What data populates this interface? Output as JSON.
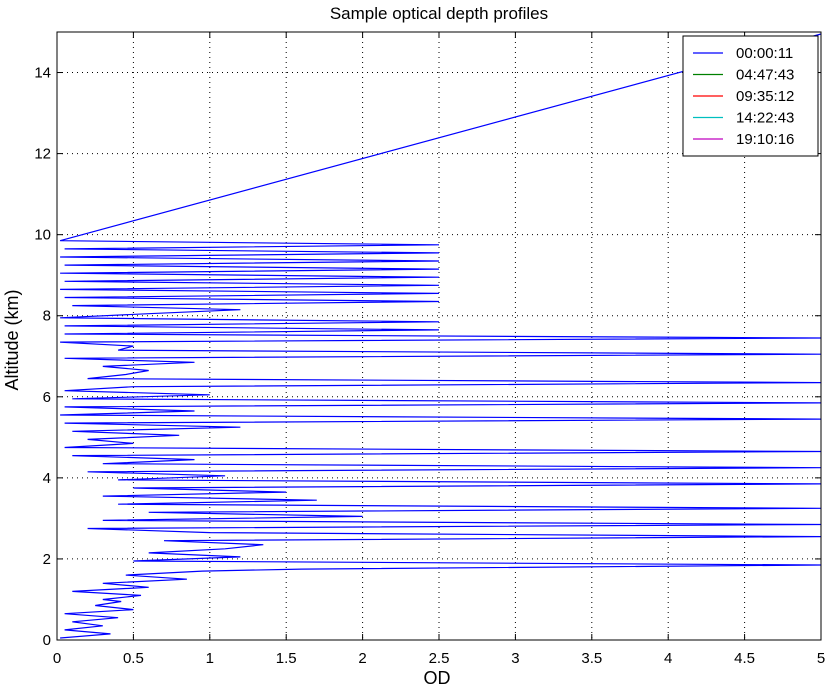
{
  "chart_data": {
    "type": "line",
    "title": "Sample optical depth profiles",
    "xlabel": "OD",
    "ylabel": "Altitude (km)",
    "xlim": [
      0,
      5
    ],
    "ylim": [
      0,
      15
    ],
    "xticks": [
      0,
      0.5,
      1,
      1.5,
      2,
      2.5,
      3,
      3.5,
      4,
      4.5,
      5
    ],
    "xtick_labels": [
      "0",
      "0.5",
      "1",
      "1.5",
      "2",
      "2.5",
      "3",
      "3.5",
      "4",
      "4.5",
      "5"
    ],
    "yticks": [
      0,
      2,
      4,
      6,
      8,
      10,
      12,
      14
    ],
    "ytick_labels": [
      "0",
      "2",
      "4",
      "6",
      "8",
      "10",
      "12",
      "14"
    ],
    "grid": true,
    "legend_position": "top-right",
    "series": [
      {
        "name": "00:00:11",
        "color": "#0000ff",
        "x": [
          0.02,
          0.35,
          0.05,
          0.3,
          0.1,
          0.4,
          0.05,
          0.5,
          0.25,
          0.42,
          0.3,
          0.55,
          0.1,
          0.6,
          0.3,
          0.85,
          0.45,
          0.95,
          1.6,
          5,
          0.5,
          1.2,
          0.6,
          1.1,
          1.35,
          0.7,
          5,
          1.0,
          0.2,
          5,
          0.3,
          2.0,
          0.6,
          5,
          0.4,
          1.7,
          0.3,
          1.5,
          0.5,
          5,
          0.4,
          1.1,
          0.2,
          5,
          0.3,
          0.9,
          0.1,
          5,
          0.05,
          0.5,
          0.2,
          0.8,
          0.1,
          1.2,
          0.05,
          5,
          0.02,
          0.9,
          0.05,
          5,
          0.1,
          1.0,
          0.05,
          0.5,
          5,
          0.2,
          0.45,
          0.6,
          0.3,
          0.9,
          0.05,
          5,
          0.4,
          0.5,
          0.02,
          5,
          0.05,
          2.5,
          0.05,
          2.5,
          0.02,
          0.6,
          1.2,
          0.1,
          2.5,
          0.05,
          2.5,
          0.02,
          2.5,
          0.05,
          2.5,
          0.02,
          2.5,
          0.05,
          2.5,
          0.02,
          2.5,
          0.05,
          2.5,
          0.02,
          5
        ],
        "y": [
          0.05,
          0.15,
          0.25,
          0.35,
          0.45,
          0.55,
          0.65,
          0.75,
          0.85,
          0.95,
          1.0,
          1.1,
          1.2,
          1.3,
          1.4,
          1.5,
          1.6,
          1.7,
          1.75,
          1.85,
          1.95,
          2.05,
          2.15,
          2.25,
          2.35,
          2.45,
          2.55,
          2.65,
          2.75,
          2.85,
          2.95,
          3.05,
          3.15,
          3.25,
          3.35,
          3.45,
          3.55,
          3.65,
          3.75,
          3.85,
          3.95,
          4.05,
          4.15,
          4.25,
          4.35,
          4.45,
          4.55,
          4.65,
          4.75,
          4.85,
          4.95,
          5.05,
          5.15,
          5.25,
          5.35,
          5.45,
          5.55,
          5.65,
          5.75,
          5.85,
          5.95,
          6.05,
          6.15,
          6.25,
          6.35,
          6.45,
          6.55,
          6.65,
          6.75,
          6.85,
          6.95,
          7.05,
          7.15,
          7.25,
          7.35,
          7.45,
          7.55,
          7.65,
          7.75,
          7.85,
          7.95,
          8.05,
          8.15,
          8.25,
          8.35,
          8.45,
          8.55,
          8.65,
          8.75,
          8.85,
          8.95,
          9.05,
          9.15,
          9.25,
          9.35,
          9.45,
          9.55,
          9.65,
          9.75,
          9.85,
          14.95
        ]
      },
      {
        "name": "04:47:43",
        "color": "#008000",
        "x": [],
        "y": []
      },
      {
        "name": "09:35:12",
        "color": "#ff0000",
        "x": [],
        "y": []
      },
      {
        "name": "14:22:43",
        "color": "#00bfbf",
        "x": [],
        "y": []
      },
      {
        "name": "19:10:16",
        "color": "#bf00bf",
        "x": [],
        "y": []
      }
    ]
  }
}
